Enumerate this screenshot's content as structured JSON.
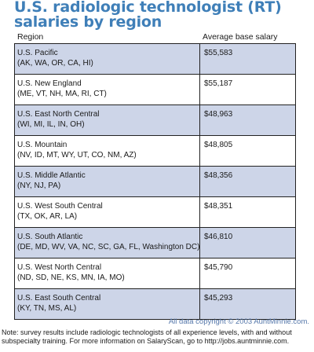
{
  "chart_data": {
    "type": "table",
    "title_lines": [
      "U.S. radiologic technologist (RT)",
      "salaries by region"
    ],
    "columns": [
      "Region",
      "Average base salary"
    ],
    "rows": [
      {
        "region": "U.S. Pacific",
        "states": "(AK, WA, OR, CA, HI)",
        "salary": "$55,583",
        "value": 55583
      },
      {
        "region": "U.S. New England",
        "states": "(ME, VT, NH, MA, RI, CT)",
        "salary": "$55,187",
        "value": 55187
      },
      {
        "region": "U.S. East North Central",
        "states": "(WI, MI, IL, IN, OH)",
        "salary": "$48,963",
        "value": 48963
      },
      {
        "region": "U.S. Mountain",
        "states": "(NV, ID, MT, WY, UT, CO, NM, AZ)",
        "salary": "$48,805",
        "value": 48805
      },
      {
        "region": "U.S. Middle Atlantic",
        "states": "(NY, NJ, PA)",
        "salary": "$48,356",
        "value": 48356
      },
      {
        "region": "U.S. West South Central",
        "states": "(TX, OK, AR, LA)",
        "salary": "$48,351",
        "value": 48351
      },
      {
        "region": "U.S. South Atlantic",
        "states": "(DE, MD, WV, VA, NC, SC, GA, FL, Washington DC)",
        "salary": "$46,810",
        "value": 46810
      },
      {
        "region": "U.S. West North Central",
        "states": "(ND, SD, NE, KS, MN, IA, MO)",
        "salary": "$45,790",
        "value": 45790
      },
      {
        "region": "U.S. East South Central",
        "states": "(KY, TN, MS, AL)",
        "salary": "$45,293",
        "value": 45293
      }
    ]
  },
  "footer": {
    "copyright": "All data copyright © 2003 AuntMinnie.com.",
    "note_lines": [
      "Note: survey results include radiologic technologists of all experience levels, with and without",
      "subspecialty training. For more information on SalaryScan, go to http://jobs.auntminnie.com."
    ]
  },
  "colors": {
    "title": "#3f7fb8",
    "shaded_row": "#cdd5e8",
    "plain_row": "#ffffff",
    "border": "#222222",
    "copyright": "#5577aa"
  }
}
